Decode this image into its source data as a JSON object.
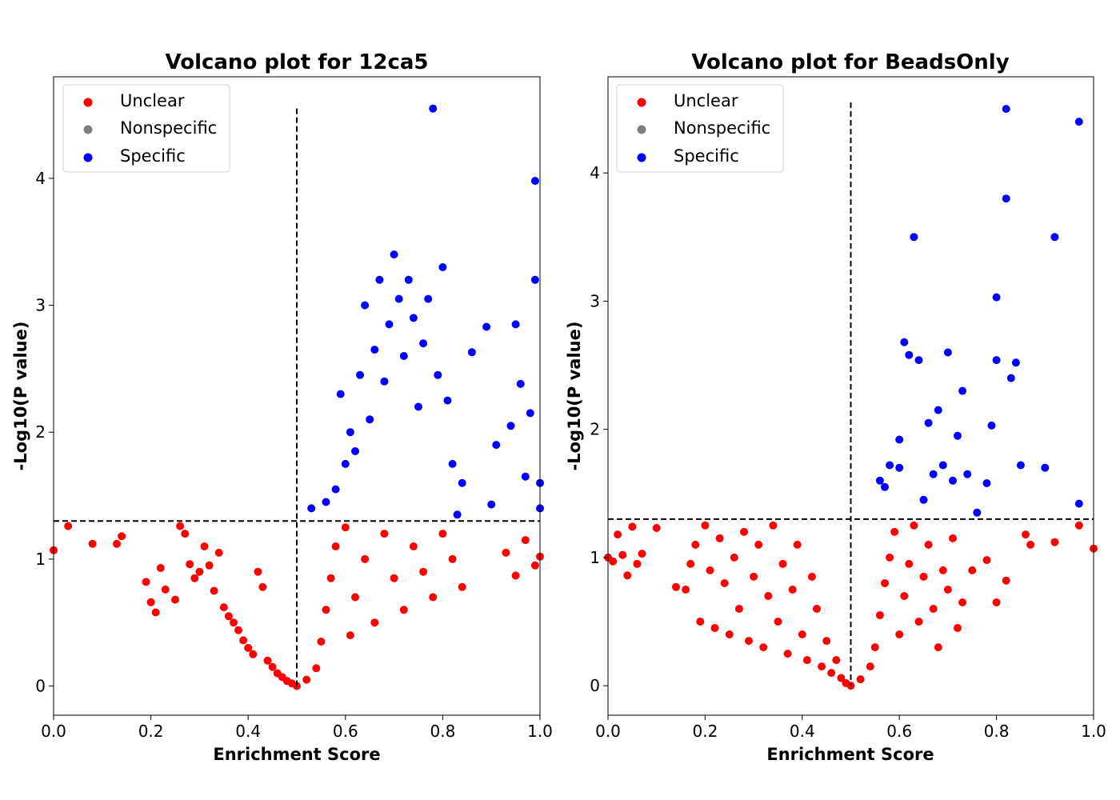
{
  "chart_data": [
    {
      "type": "scatter",
      "title": "Volcano plot for 12ca5",
      "xlabel": "Enrichment Score",
      "ylabel": "-Log10(P value)",
      "xlim": [
        0.0,
        1.0
      ],
      "ylim": [
        -0.23,
        4.8
      ],
      "xticks": [
        "0.0",
        "0.2",
        "0.4",
        "0.6",
        "0.8",
        "1.0"
      ],
      "yticks": [
        "0",
        "1",
        "2",
        "3",
        "4"
      ],
      "legend": {
        "placement": "top-left",
        "entries": [
          "Unclear",
          "Nonspecific",
          "Specific"
        ]
      },
      "thresholds": {
        "x": 0.5,
        "y": 1.3
      },
      "series": [
        {
          "name": "Unclear",
          "color": "#ff0000",
          "points": [
            [
              0.0,
              1.07
            ],
            [
              0.03,
              1.26
            ],
            [
              0.08,
              1.12
            ],
            [
              0.13,
              1.12
            ],
            [
              0.14,
              1.18
            ],
            [
              0.19,
              0.82
            ],
            [
              0.2,
              0.66
            ],
            [
              0.21,
              0.58
            ],
            [
              0.22,
              0.93
            ],
            [
              0.23,
              0.76
            ],
            [
              0.25,
              0.68
            ],
            [
              0.26,
              1.26
            ],
            [
              0.27,
              1.2
            ],
            [
              0.28,
              0.96
            ],
            [
              0.29,
              0.85
            ],
            [
              0.3,
              0.9
            ],
            [
              0.31,
              1.1
            ],
            [
              0.32,
              0.95
            ],
            [
              0.33,
              0.75
            ],
            [
              0.34,
              1.05
            ],
            [
              0.35,
              0.62
            ],
            [
              0.36,
              0.55
            ],
            [
              0.37,
              0.5
            ],
            [
              0.38,
              0.44
            ],
            [
              0.39,
              0.36
            ],
            [
              0.4,
              0.3
            ],
            [
              0.41,
              0.25
            ],
            [
              0.42,
              0.9
            ],
            [
              0.43,
              0.78
            ],
            [
              0.44,
              0.2
            ],
            [
              0.45,
              0.15
            ],
            [
              0.46,
              0.1
            ],
            [
              0.47,
              0.07
            ],
            [
              0.48,
              0.04
            ],
            [
              0.49,
              0.02
            ],
            [
              0.5,
              0.0
            ],
            [
              0.52,
              0.05
            ],
            [
              0.54,
              0.14
            ],
            [
              0.55,
              0.35
            ],
            [
              0.56,
              0.6
            ],
            [
              0.57,
              0.85
            ],
            [
              0.58,
              1.1
            ],
            [
              0.6,
              1.25
            ],
            [
              0.61,
              0.4
            ],
            [
              0.62,
              0.7
            ],
            [
              0.64,
              1.0
            ],
            [
              0.66,
              0.5
            ],
            [
              0.68,
              1.2
            ],
            [
              0.7,
              0.85
            ],
            [
              0.72,
              0.6
            ],
            [
              0.74,
              1.1
            ],
            [
              0.76,
              0.9
            ],
            [
              0.78,
              0.7
            ],
            [
              0.8,
              1.2
            ],
            [
              0.82,
              1.0
            ],
            [
              0.84,
              0.78
            ],
            [
              0.93,
              1.05
            ],
            [
              0.95,
              0.87
            ],
            [
              0.97,
              1.15
            ],
            [
              0.99,
              0.95
            ],
            [
              1.0,
              1.02
            ]
          ]
        },
        {
          "name": "Nonspecific",
          "color": "#808080",
          "points": []
        },
        {
          "name": "Specific",
          "color": "#0000ff",
          "points": [
            [
              0.53,
              1.4
            ],
            [
              0.56,
              1.45
            ],
            [
              0.58,
              1.55
            ],
            [
              0.59,
              2.3
            ],
            [
              0.6,
              1.75
            ],
            [
              0.61,
              2.0
            ],
            [
              0.62,
              1.85
            ],
            [
              0.63,
              2.45
            ],
            [
              0.64,
              3.0
            ],
            [
              0.65,
              2.1
            ],
            [
              0.66,
              2.65
            ],
            [
              0.67,
              3.2
            ],
            [
              0.68,
              2.4
            ],
            [
              0.69,
              2.85
            ],
            [
              0.7,
              3.4
            ],
            [
              0.71,
              3.05
            ],
            [
              0.72,
              2.6
            ],
            [
              0.73,
              3.2
            ],
            [
              0.74,
              2.9
            ],
            [
              0.75,
              2.2
            ],
            [
              0.76,
              2.7
            ],
            [
              0.77,
              3.05
            ],
            [
              0.78,
              4.55
            ],
            [
              0.79,
              2.45
            ],
            [
              0.8,
              3.3
            ],
            [
              0.81,
              2.25
            ],
            [
              0.82,
              1.75
            ],
            [
              0.83,
              1.35
            ],
            [
              0.84,
              1.6
            ],
            [
              0.86,
              2.63
            ],
            [
              0.89,
              2.83
            ],
            [
              0.9,
              1.43
            ],
            [
              0.91,
              1.9
            ],
            [
              0.94,
              2.05
            ],
            [
              0.95,
              2.85
            ],
            [
              0.96,
              2.38
            ],
            [
              0.97,
              1.65
            ],
            [
              0.98,
              2.15
            ],
            [
              0.99,
              3.98
            ],
            [
              0.99,
              3.2
            ],
            [
              1.0,
              1.6
            ],
            [
              1.0,
              1.4
            ]
          ]
        }
      ]
    },
    {
      "type": "scatter",
      "title": "Volcano plot for BeadsOnly",
      "xlabel": "Enrichment Score",
      "ylabel": "-Log10(P value)",
      "xlim": [
        0.0,
        1.0
      ],
      "ylim": [
        -0.23,
        4.75
      ],
      "xticks": [
        "0.0",
        "0.2",
        "0.4",
        "0.6",
        "0.8",
        "1.0"
      ],
      "yticks": [
        "0",
        "1",
        "2",
        "3",
        "4"
      ],
      "legend": {
        "placement": "top-left",
        "entries": [
          "Unclear",
          "Nonspecific",
          "Specific"
        ]
      },
      "thresholds": {
        "x": 0.5,
        "y": 1.3
      },
      "series": [
        {
          "name": "Unclear",
          "color": "#ff0000",
          "points": [
            [
              0.0,
              1.0
            ],
            [
              0.01,
              0.97
            ],
            [
              0.02,
              1.18
            ],
            [
              0.03,
              1.02
            ],
            [
              0.04,
              0.86
            ],
            [
              0.05,
              1.24
            ],
            [
              0.06,
              0.95
            ],
            [
              0.07,
              1.03
            ],
            [
              0.1,
              1.23
            ],
            [
              0.14,
              0.77
            ],
            [
              0.16,
              0.75
            ],
            [
              0.17,
              0.95
            ],
            [
              0.18,
              1.1
            ],
            [
              0.19,
              0.5
            ],
            [
              0.2,
              1.25
            ],
            [
              0.21,
              0.9
            ],
            [
              0.22,
              0.45
            ],
            [
              0.23,
              1.15
            ],
            [
              0.24,
              0.8
            ],
            [
              0.25,
              0.4
            ],
            [
              0.26,
              1.0
            ],
            [
              0.27,
              0.6
            ],
            [
              0.28,
              1.2
            ],
            [
              0.29,
              0.35
            ],
            [
              0.3,
              0.85
            ],
            [
              0.31,
              1.1
            ],
            [
              0.32,
              0.3
            ],
            [
              0.33,
              0.7
            ],
            [
              0.34,
              1.25
            ],
            [
              0.35,
              0.5
            ],
            [
              0.36,
              0.95
            ],
            [
              0.37,
              0.25
            ],
            [
              0.38,
              0.75
            ],
            [
              0.39,
              1.1
            ],
            [
              0.4,
              0.4
            ],
            [
              0.41,
              0.2
            ],
            [
              0.42,
              0.85
            ],
            [
              0.43,
              0.6
            ],
            [
              0.44,
              0.15
            ],
            [
              0.45,
              0.35
            ],
            [
              0.46,
              0.1
            ],
            [
              0.47,
              0.2
            ],
            [
              0.48,
              0.06
            ],
            [
              0.49,
              0.02
            ],
            [
              0.5,
              0.0
            ],
            [
              0.52,
              0.05
            ],
            [
              0.54,
              0.15
            ],
            [
              0.55,
              0.3
            ],
            [
              0.56,
              0.55
            ],
            [
              0.57,
              0.8
            ],
            [
              0.58,
              1.0
            ],
            [
              0.59,
              1.2
            ],
            [
              0.6,
              0.4
            ],
            [
              0.61,
              0.7
            ],
            [
              0.62,
              0.95
            ],
            [
              0.63,
              1.25
            ],
            [
              0.64,
              0.5
            ],
            [
              0.65,
              0.85
            ],
            [
              0.66,
              1.1
            ],
            [
              0.67,
              0.6
            ],
            [
              0.68,
              0.3
            ],
            [
              0.69,
              0.9
            ],
            [
              0.7,
              0.75
            ],
            [
              0.71,
              1.15
            ],
            [
              0.72,
              0.45
            ],
            [
              0.73,
              0.65
            ],
            [
              0.75,
              0.9
            ],
            [
              0.78,
              0.98
            ],
            [
              0.8,
              0.65
            ],
            [
              0.82,
              0.82
            ],
            [
              0.86,
              1.18
            ],
            [
              0.87,
              1.1
            ],
            [
              0.92,
              1.12
            ],
            [
              0.97,
              1.25
            ],
            [
              1.0,
              1.07
            ]
          ]
        },
        {
          "name": "Nonspecific",
          "color": "#808080",
          "points": []
        },
        {
          "name": "Specific",
          "color": "#0000ff",
          "points": [
            [
              0.56,
              1.6
            ],
            [
              0.57,
              1.55
            ],
            [
              0.58,
              1.72
            ],
            [
              0.6,
              1.7
            ],
            [
              0.6,
              1.92
            ],
            [
              0.61,
              2.68
            ],
            [
              0.62,
              2.58
            ],
            [
              0.63,
              3.5
            ],
            [
              0.64,
              2.54
            ],
            [
              0.65,
              1.45
            ],
            [
              0.66,
              2.05
            ],
            [
              0.67,
              1.65
            ],
            [
              0.68,
              2.15
            ],
            [
              0.69,
              1.72
            ],
            [
              0.7,
              2.6
            ],
            [
              0.71,
              1.6
            ],
            [
              0.72,
              1.95
            ],
            [
              0.73,
              2.3
            ],
            [
              0.74,
              1.65
            ],
            [
              0.76,
              1.35
            ],
            [
              0.78,
              1.58
            ],
            [
              0.79,
              2.03
            ],
            [
              0.8,
              3.03
            ],
            [
              0.8,
              2.54
            ],
            [
              0.82,
              4.5
            ],
            [
              0.82,
              3.8
            ],
            [
              0.83,
              2.4
            ],
            [
              0.84,
              2.52
            ],
            [
              0.85,
              1.72
            ],
            [
              0.9,
              1.7
            ],
            [
              0.92,
              3.5
            ],
            [
              0.97,
              4.4
            ],
            [
              0.97,
              1.42
            ]
          ]
        }
      ]
    }
  ]
}
